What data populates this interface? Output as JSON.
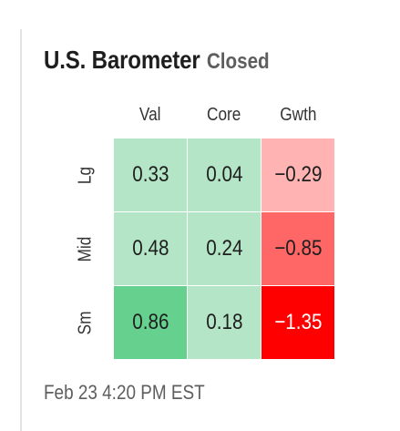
{
  "widget": {
    "title": "U.S. Barometer",
    "status": "Closed",
    "timestamp": "Feb 23 4:20 PM EST"
  },
  "columns": [
    "Val",
    "Core",
    "Gwth"
  ],
  "rows": [
    "Lg",
    "Mid",
    "Sm"
  ],
  "cells": [
    [
      "0.33",
      "0.04",
      "−0.29"
    ],
    [
      "0.48",
      "0.24",
      "−0.85"
    ],
    [
      "0.86",
      "0.18",
      "−1.35"
    ]
  ],
  "colors": {
    "light_green": "#b3e5c6",
    "green": "#66d18f",
    "light_red": "#ffb3b3",
    "red": "#ff6666",
    "deep_red": "#ff0000"
  }
}
